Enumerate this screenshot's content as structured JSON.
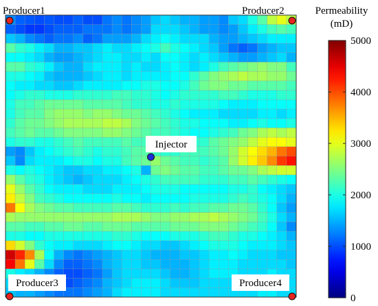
{
  "chart_data": {
    "type": "heatmap",
    "title": "",
    "colorbar": {
      "title_line1": "Permeability",
      "title_line2": "(mD)",
      "min": 0,
      "max": 5000,
      "ticks": [
        "0",
        "1000",
        "2000",
        "3000",
        "4000",
        "5000"
      ],
      "tick_values": [
        0,
        1000,
        2000,
        3000,
        4000,
        5000
      ],
      "colormap": "jet"
    },
    "grid": {
      "rows": 30,
      "cols": 30,
      "gridlines": true,
      "gridline_color": "#9a9a9a"
    },
    "wells": [
      {
        "name": "Producer1",
        "type": "producer",
        "col": 0,
        "row": 0,
        "color": "#e8231f"
      },
      {
        "name": "Producer2",
        "type": "producer",
        "col": 29,
        "row": 0,
        "color": "#e8231f"
      },
      {
        "name": "Producer3",
        "type": "producer",
        "col": 0,
        "row": 29,
        "color": "#e8231f"
      },
      {
        "name": "Producer4",
        "type": "producer",
        "col": 29,
        "row": 29,
        "color": "#e8231f"
      },
      {
        "name": "Injector",
        "type": "injector",
        "col": 14.5,
        "row": 14.6,
        "color": "#1f2ed8"
      }
    ],
    "field_rows": [
      [
        1300,
        1100,
        1050,
        1000,
        1050,
        1000,
        1000,
        1100,
        1000,
        1000,
        1200,
        1300,
        1200,
        1300,
        1400,
        1600,
        1700,
        1600,
        1500,
        1500,
        1400,
        1400,
        1300,
        1600,
        1700,
        2000,
        2300,
        2800,
        3000,
        2800
      ],
      [
        1100,
        1000,
        900,
        900,
        1000,
        1100,
        1100,
        1100,
        1200,
        1200,
        1200,
        1300,
        1200,
        1300,
        1400,
        1700,
        1700,
        1700,
        1600,
        1500,
        1400,
        1400,
        1300,
        1400,
        1600,
        1800,
        2000,
        2200,
        2300,
        2200
      ],
      [
        1600,
        1500,
        1300,
        1200,
        1100,
        1200,
        1200,
        1300,
        1100,
        1200,
        1400,
        1400,
        1400,
        1500,
        1700,
        1800,
        1900,
        1800,
        1700,
        1700,
        1700,
        1500,
        1400,
        1400,
        1500,
        1600,
        1700,
        1800,
        1800,
        1800
      ],
      [
        2300,
        2100,
        2000,
        1800,
        1700,
        1500,
        1500,
        1600,
        1600,
        1700,
        1800,
        1700,
        1700,
        1800,
        1900,
        2000,
        2200,
        2000,
        1900,
        1800,
        1700,
        1600,
        1400,
        1200,
        1100,
        1200,
        1400,
        1500,
        1600,
        1600
      ],
      [
        1900,
        1900,
        1800,
        1700,
        1500,
        1400,
        1400,
        1500,
        1600,
        1700,
        1800,
        1800,
        1700,
        1700,
        1800,
        1700,
        1900,
        1900,
        1800,
        1700,
        1800,
        1700,
        1600,
        1500,
        1400,
        1400,
        1500,
        1600,
        1700,
        1500
      ],
      [
        2300,
        2300,
        2100,
        2000,
        1800,
        1600,
        1500,
        1500,
        1700,
        1800,
        1800,
        1800,
        1700,
        1800,
        1700,
        1700,
        1800,
        1900,
        1800,
        1700,
        1800,
        2000,
        2200,
        2300,
        2400,
        2500,
        2600,
        2500,
        2500,
        2200
      ],
      [
        2000,
        2000,
        1900,
        1800,
        1600,
        1500,
        1500,
        1500,
        1600,
        1700,
        1800,
        1800,
        1700,
        1800,
        1800,
        1800,
        1800,
        1900,
        1900,
        2100,
        2300,
        2500,
        2600,
        2700,
        2800,
        2700,
        2700,
        2600,
        2600,
        2400
      ],
      [
        1900,
        1800,
        1800,
        1700,
        1700,
        1600,
        1600,
        1700,
        1800,
        1800,
        1800,
        1800,
        1900,
        1900,
        2000,
        2000,
        1900,
        1900,
        2000,
        2200,
        2400,
        2500,
        2500,
        2400,
        2400,
        2300,
        2300,
        2300,
        2300,
        2200
      ],
      [
        1900,
        2000,
        2100,
        2100,
        2000,
        2000,
        2000,
        2100,
        2100,
        2100,
        2100,
        2200,
        2200,
        2100,
        2100,
        2000,
        1900,
        2000,
        2100,
        2100,
        2100,
        2100,
        2200,
        2200,
        2100,
        2000,
        2000,
        2000,
        2100,
        2100
      ],
      [
        2000,
        2200,
        2200,
        2300,
        2400,
        2400,
        2400,
        2400,
        2300,
        2300,
        2300,
        2300,
        2200,
        2100,
        2100,
        2000,
        2000,
        2100,
        2000,
        2000,
        2000,
        2000,
        1900,
        1800,
        1800,
        1800,
        1900,
        1900,
        1900,
        1900
      ],
      [
        2000,
        2200,
        2300,
        2300,
        2500,
        2600,
        2600,
        2600,
        2500,
        2600,
        2600,
        2500,
        2400,
        2400,
        2300,
        2200,
        2100,
        2000,
        1900,
        1800,
        1800,
        1800,
        1700,
        1700,
        1700,
        1700,
        1800,
        1800,
        1700,
        1800
      ],
      [
        2100,
        2300,
        2400,
        2400,
        2500,
        2600,
        2700,
        2700,
        2700,
        2700,
        2800,
        2800,
        2700,
        2500,
        2400,
        2300,
        2200,
        2100,
        2000,
        2000,
        1900,
        1900,
        1900,
        1800,
        1800,
        1900,
        2000,
        1900,
        1900,
        2000
      ],
      [
        2200,
        2300,
        2400,
        2300,
        2300,
        2400,
        2500,
        2500,
        2500,
        2500,
        2600,
        2600,
        2500,
        2400,
        2300,
        2200,
        2200,
        2100,
        2000,
        1900,
        1900,
        2000,
        2100,
        2200,
        2400,
        2500,
        2700,
        2800,
        2700,
        2800
      ],
      [
        2000,
        2100,
        2100,
        2000,
        2000,
        2100,
        2200,
        2300,
        2200,
        2200,
        2200,
        2200,
        2300,
        2200,
        2200,
        2200,
        2100,
        2100,
        2000,
        2100,
        2100,
        2300,
        2400,
        2500,
        2600,
        2800,
        3000,
        3100,
        3100,
        3000
      ],
      [
        1400,
        1300,
        1600,
        1800,
        1900,
        2000,
        2100,
        2200,
        2100,
        2000,
        2100,
        2100,
        2200,
        2300,
        2300,
        2200,
        2100,
        2100,
        2200,
        2200,
        2200,
        2300,
        2400,
        2600,
        2900,
        3100,
        3300,
        3500,
        3800,
        4000
      ],
      [
        1600,
        1300,
        1700,
        1800,
        1800,
        1800,
        1900,
        2000,
        2000,
        1900,
        2000,
        2000,
        2200,
        2300,
        2400,
        2600,
        2400,
        2300,
        2200,
        2200,
        2100,
        2200,
        2300,
        2600,
        2900,
        3200,
        3400,
        3700,
        4100,
        4300
      ],
      [
        2000,
        1900,
        2000,
        1900,
        1800,
        1700,
        1600,
        1600,
        1700,
        1700,
        1800,
        1800,
        1900,
        2000,
        1500,
        2400,
        2500,
        2400,
        2300,
        2300,
        2200,
        2200,
        2300,
        2400,
        2400,
        2500,
        2700,
        2800,
        2900,
        2900
      ],
      [
        2600,
        2300,
        2100,
        2000,
        1800,
        1700,
        1600,
        1500,
        1600,
        1700,
        1700,
        1700,
        1800,
        1900,
        2000,
        2100,
        2200,
        2200,
        2200,
        2200,
        2100,
        2100,
        2100,
        2200,
        2200,
        2300,
        2200,
        2100,
        2000,
        1900
      ],
      [
        3000,
        2600,
        2300,
        2100,
        1900,
        1800,
        1800,
        1800,
        1700,
        1700,
        1700,
        1800,
        1800,
        1800,
        1900,
        2000,
        2000,
        2000,
        1900,
        1900,
        1900,
        1900,
        1900,
        2000,
        2000,
        2100,
        1900,
        1800,
        1700,
        1600
      ],
      [
        3200,
        2800,
        2500,
        2200,
        2100,
        2000,
        1900,
        1900,
        1900,
        1900,
        1900,
        2000,
        1900,
        1900,
        1800,
        1900,
        1900,
        1900,
        1900,
        2000,
        2000,
        2000,
        2000,
        2100,
        2200,
        2100,
        2000,
        1900,
        1700,
        1500
      ],
      [
        3800,
        3100,
        2700,
        2500,
        2400,
        2300,
        2300,
        2200,
        2200,
        2200,
        2200,
        2300,
        2300,
        2200,
        2100,
        2100,
        2100,
        2200,
        2100,
        2200,
        2200,
        2300,
        2300,
        2400,
        2400,
        2300,
        2100,
        1900,
        1600,
        1400
      ],
      [
        2700,
        2600,
        2600,
        2600,
        2600,
        2600,
        2600,
        2600,
        2600,
        2600,
        2600,
        2700,
        2700,
        2700,
        2600,
        2500,
        2500,
        2600,
        2600,
        2700,
        2700,
        2800,
        2700,
        2600,
        2500,
        2400,
        2200,
        2000,
        1700,
        1500
      ],
      [
        2300,
        2300,
        2200,
        2200,
        2300,
        2300,
        2400,
        2400,
        2300,
        2300,
        2400,
        2400,
        2400,
        2300,
        2300,
        2300,
        2300,
        2400,
        2400,
        2400,
        2500,
        2500,
        2500,
        2400,
        2300,
        2200,
        2100,
        1900,
        1600,
        1300
      ],
      [
        2000,
        2000,
        1900,
        1900,
        2000,
        2000,
        2000,
        2000,
        2000,
        2000,
        2000,
        2100,
        2100,
        2000,
        1900,
        1900,
        1900,
        2000,
        2000,
        2000,
        2100,
        2200,
        2200,
        2100,
        2000,
        2000,
        1900,
        1800,
        1700,
        1500
      ],
      [
        3300,
        2900,
        2500,
        2100,
        1900,
        1800,
        1800,
        1700,
        1700,
        1700,
        1800,
        1900,
        1900,
        1800,
        1700,
        1700,
        1600,
        1600,
        1700,
        1800,
        1900,
        2000,
        2000,
        2000,
        1900,
        1800,
        1800,
        1800,
        1700,
        1600
      ],
      [
        4600,
        4200,
        3700,
        2700,
        1900,
        1500,
        1300,
        1200,
        1300,
        1400,
        1500,
        1600,
        1700,
        1700,
        1600,
        1500,
        1500,
        1500,
        1600,
        1600,
        1700,
        1800,
        1800,
        1900,
        1800,
        1700,
        1700,
        1700,
        1600,
        1600
      ],
      [
        4400,
        3800,
        3000,
        2300,
        1700,
        1300,
        1100,
        1100,
        1200,
        1300,
        1500,
        1600,
        1700,
        1700,
        1600,
        1600,
        1500,
        1500,
        1500,
        1600,
        1700,
        1800,
        1800,
        1800,
        1700,
        1700,
        1700,
        1700,
        1700,
        1600
      ],
      [
        2000,
        1800,
        1700,
        1500,
        1300,
        1100,
        1000,
        1000,
        1100,
        1200,
        1400,
        1600,
        1700,
        1700,
        1700,
        1700,
        1600,
        1500,
        1500,
        1600,
        1700,
        1800,
        1800,
        1800,
        1700,
        1700,
        1700,
        1800,
        1700,
        1700
      ],
      [
        1700,
        1600,
        1500,
        1400,
        1200,
        1100,
        1000,
        1100,
        1200,
        1300,
        1500,
        1600,
        1700,
        1800,
        1800,
        1800,
        1700,
        1600,
        1600,
        1600,
        1700,
        1700,
        1700,
        1700,
        1700,
        1700,
        1800,
        1800,
        1800,
        1700
      ],
      [
        1600,
        1500,
        1500,
        1400,
        1300,
        1200,
        1200,
        1200,
        1300,
        1400,
        1500,
        1700,
        1800,
        1800,
        1800,
        1800,
        1700,
        1700,
        1700,
        1700,
        1700,
        1700,
        1700,
        1700,
        1700,
        1700,
        1800,
        1800,
        1700,
        1700
      ]
    ]
  }
}
